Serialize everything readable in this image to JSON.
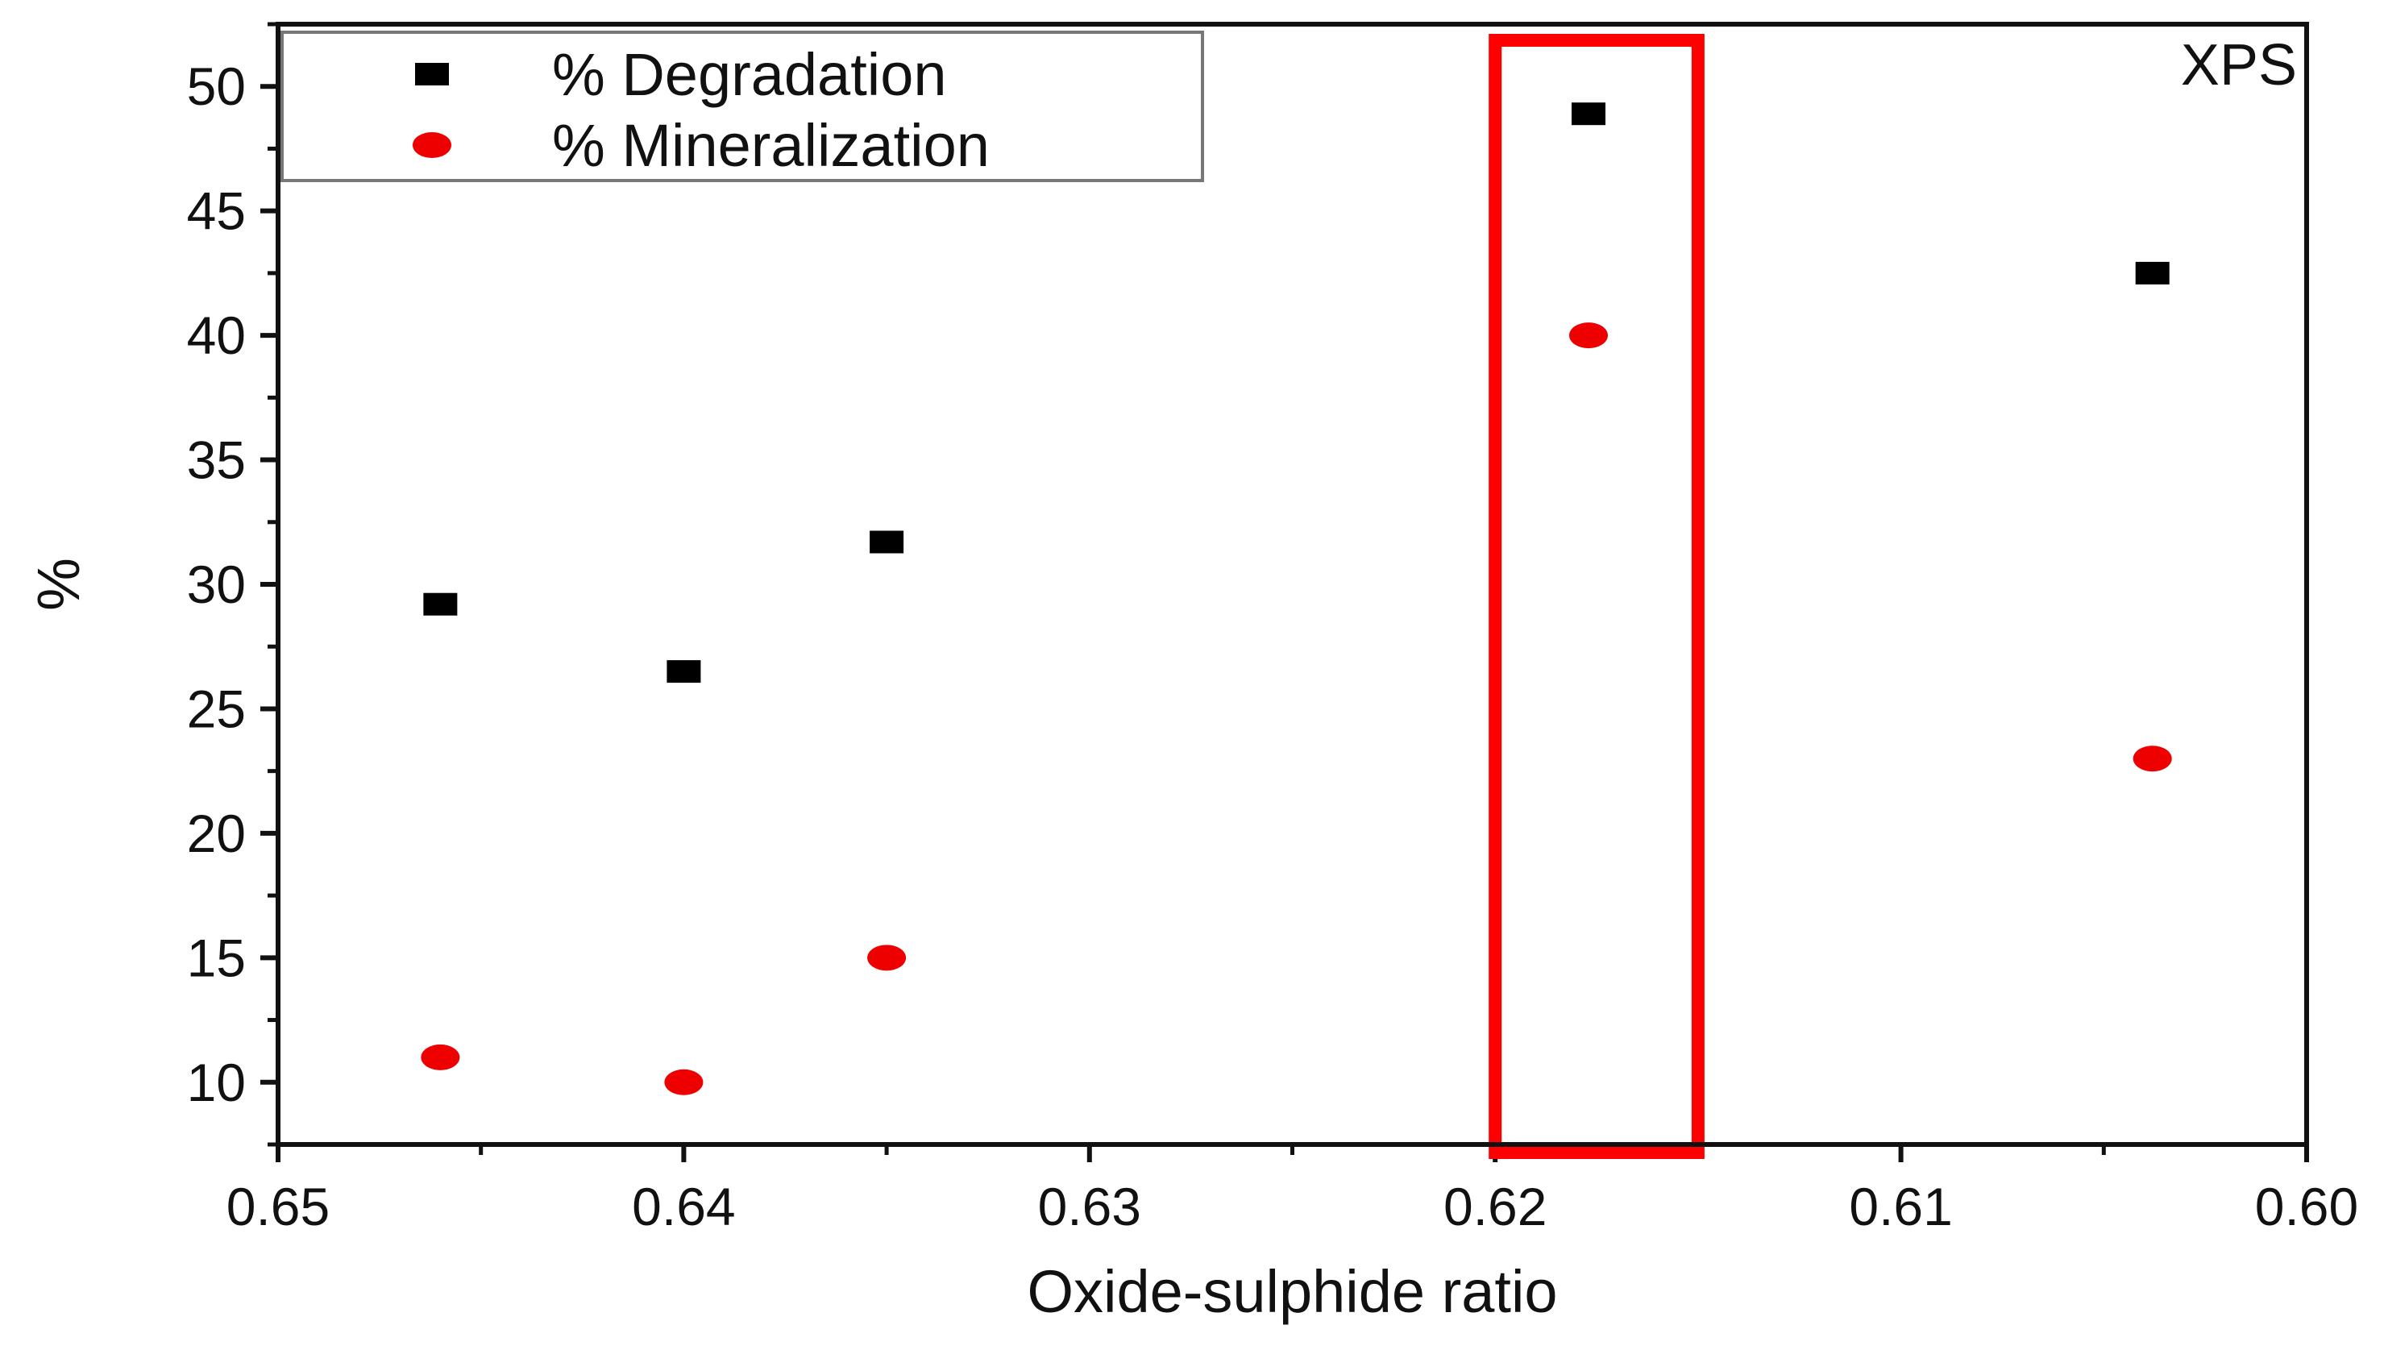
{
  "chart_data": {
    "type": "scatter",
    "title": "",
    "xlabel": "Oxide-sulphide ratio",
    "ylabel": "%",
    "xlim": [
      0.65,
      0.6
    ],
    "x_reversed": true,
    "ylim": [
      7.5,
      52.5
    ],
    "x_ticks": [
      "0.65",
      "0.64",
      "0.63",
      "0.62",
      "0.61",
      "0.60"
    ],
    "y_ticks": [
      "10",
      "15",
      "20",
      "25",
      "30",
      "35",
      "40",
      "45",
      "50"
    ],
    "legend_position": "top-left",
    "annotation": "XPS",
    "series": [
      {
        "name": "% Degradation",
        "marker": "square",
        "color": "#000000",
        "x": [
          0.646,
          0.64,
          0.635,
          0.6177,
          0.6038
        ],
        "y": [
          29.2,
          26.5,
          31.7,
          48.9,
          42.5
        ]
      },
      {
        "name": "% Mineralization",
        "marker": "circle",
        "color": "#ee0000",
        "x": [
          0.646,
          0.64,
          0.635,
          0.6177,
          0.6038
        ],
        "y": [
          11.0,
          10.0,
          15.0,
          40.0,
          23.0
        ]
      }
    ],
    "highlight": {
      "x_range": [
        0.62,
        0.615
      ],
      "y_range": [
        7.5,
        52.5
      ],
      "color": "#ff0000"
    }
  }
}
